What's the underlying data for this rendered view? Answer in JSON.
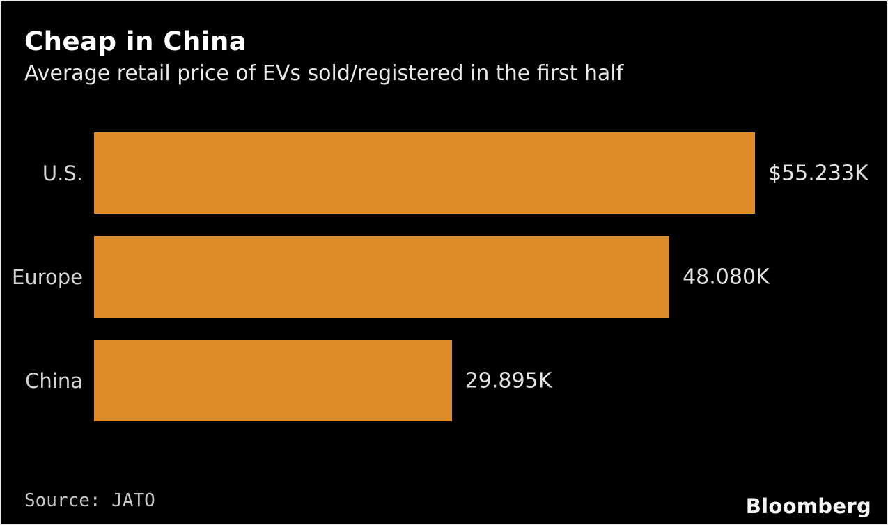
{
  "header": {
    "title": "Cheap in China",
    "subtitle": "Average retail price of EVs sold/registered in the first half"
  },
  "footer": {
    "source": "Source: JATO",
    "brand": "Bloomberg"
  },
  "colors": {
    "background": "#000000",
    "bar": "#DE8C28",
    "title_text": "#FFFFFF",
    "body_text": "#E6E6E6",
    "muted_text": "#C7C7C7",
    "frame_border": "#E8E8E8"
  },
  "chart_data": {
    "type": "bar",
    "orientation": "horizontal",
    "title": "Cheap in China",
    "subtitle": "Average retail price of EVs sold/registered in the first half",
    "categories": [
      "U.S.",
      "Europe",
      "China"
    ],
    "values": [
      55.233,
      48.08,
      29.895
    ],
    "value_labels": [
      "$55.233K",
      "48.080K",
      "29.895K"
    ],
    "xlim": [
      0,
      55.233
    ],
    "grid": false,
    "legend": false,
    "source": "JATO"
  }
}
